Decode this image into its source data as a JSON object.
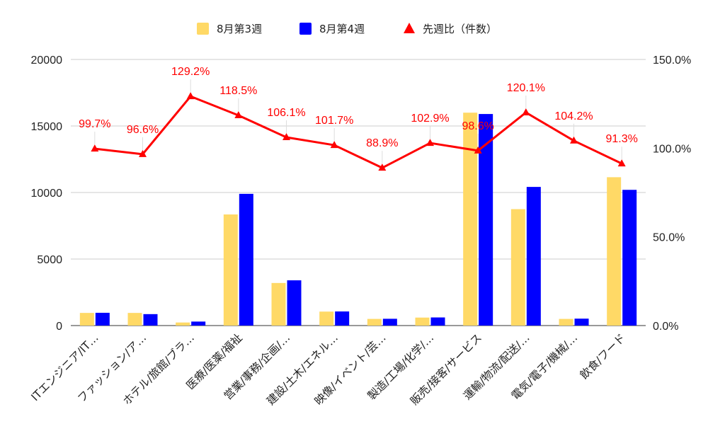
{
  "chart_data": {
    "type": "bar",
    "categories": [
      "ITエンジニア/IT…",
      "ファッション/ア…",
      "ホテル/旅館/ブラ…",
      "医療/医薬/福祉",
      "営業/事務/企画/…",
      "建設/土木/エネル…",
      "映像/イベント/芸…",
      "製造/工場/化学/…",
      "販売/接客/サービス",
      "運輸/物流/配送/…",
      "電気/電子/機械/…",
      "飲食/フード"
    ],
    "series": [
      {
        "name": "8月第3週",
        "axis": "left",
        "kind": "bar",
        "color": "#FFD966",
        "values": [
          950,
          950,
          230,
          8350,
          3200,
          1050,
          500,
          600,
          16000,
          8750,
          500,
          11150
        ]
      },
      {
        "name": "8月第4週",
        "axis": "left",
        "kind": "bar",
        "color": "#0000FF",
        "values": [
          960,
          860,
          300,
          9900,
          3400,
          1060,
          510,
          610,
          15900,
          10420,
          520,
          10200
        ]
      },
      {
        "name": "先週比（件数）",
        "axis": "right",
        "kind": "line",
        "color": "#FF0000",
        "marker": "triangle",
        "values": [
          99.7,
          96.6,
          129.2,
          118.5,
          106.1,
          101.7,
          88.9,
          102.9,
          98.6,
          120.1,
          104.2,
          91.3
        ],
        "labels": [
          "99.7%",
          "96.6%",
          "129.2%",
          "118.5%",
          "106.1%",
          "101.7%",
          "88.9%",
          "102.9%",
          "98.6%",
          "120.1%",
          "104.2%",
          "91.3%"
        ]
      }
    ],
    "y_left": {
      "lim": [
        0,
        20000
      ],
      "ticks": [
        "0",
        "5000",
        "10000",
        "15000",
        "20000"
      ],
      "tick_values": [
        0,
        5000,
        10000,
        15000,
        20000
      ]
    },
    "y_right": {
      "lim": [
        0,
        150
      ],
      "ticks": [
        "0.0%",
        "50.0%",
        "100.0%",
        "150.0%"
      ],
      "tick_values": [
        0,
        50,
        100,
        150
      ]
    },
    "grid": true,
    "legend_position": "top-center"
  }
}
